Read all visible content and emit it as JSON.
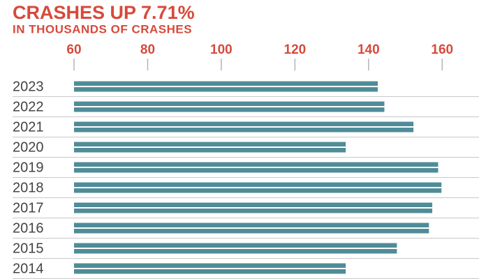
{
  "chart_data": {
    "type": "bar",
    "orientation": "horizontal",
    "title": "CRASHES UP 7.71%",
    "subtitle": "IN THOUSANDS OF CRASHES",
    "categories": [
      "2023",
      "2022",
      "2021",
      "2020",
      "2019",
      "2018",
      "2017",
      "2016",
      "2015",
      "2014"
    ],
    "values": [
      142.5,
      144.3,
      152.2,
      133.8,
      158.9,
      159.8,
      157.3,
      156.4,
      147.7,
      133.8
    ],
    "color": "#4f8c98",
    "xlim": [
      60,
      170
    ],
    "xticks": [
      60,
      80,
      100,
      120,
      140,
      160
    ]
  }
}
